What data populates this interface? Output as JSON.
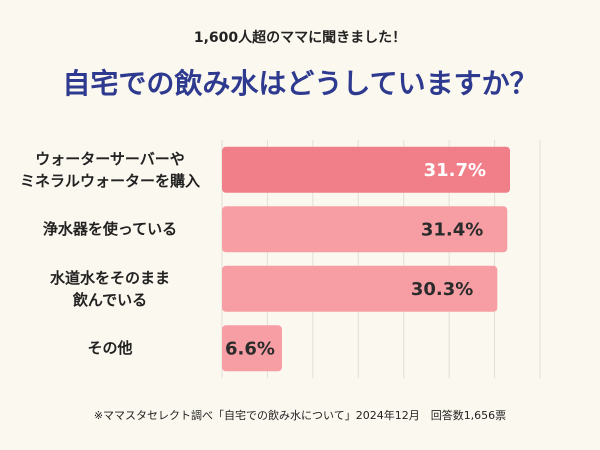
{
  "chart_data": {
    "type": "bar",
    "orientation": "horizontal",
    "subtitle": "1,600人超のママに聞きました！",
    "title": "自宅での飲み水はどうしていますか？",
    "categories": [
      "ウォーターサーバーや\nミネラルウォーターを購入",
      "浄水器を使っている",
      "水道水をそのまま\n飲んでいる",
      "その他"
    ],
    "values": [
      31.7,
      31.4,
      30.3,
      6.6
    ],
    "value_labels": [
      "31.7%",
      "31.4%",
      "30.3%",
      "6.6%"
    ],
    "colors": [
      "#f17f89",
      "#f79ea4",
      "#f79ea4",
      "#f79ea4"
    ],
    "label_colors": [
      "#ffffff",
      "#2b2b2b",
      "#2b2b2b",
      "#2b2b2b"
    ],
    "xlim": [
      0,
      35
    ],
    "xticks": [
      0,
      5,
      10,
      15,
      20,
      25,
      30,
      35
    ],
    "grid": true,
    "note": "※ママスタセレクト調べ「自宅での飲み水について」2024年12月　回答数1,656票"
  }
}
